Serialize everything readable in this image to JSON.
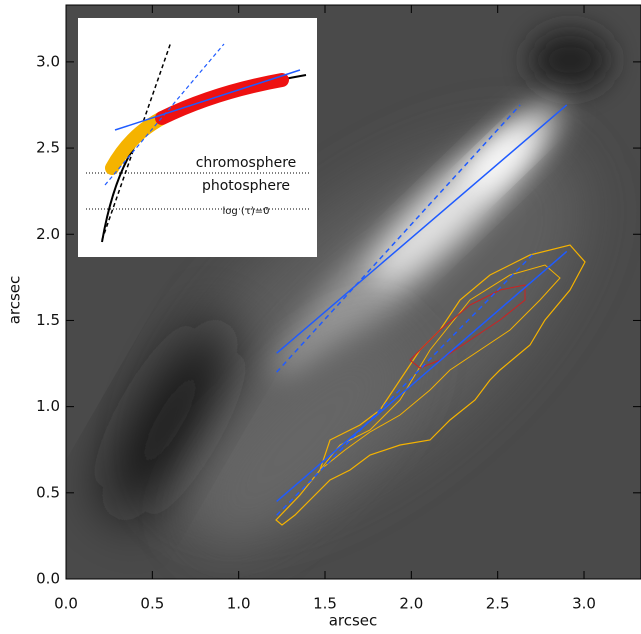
{
  "chart_data": {
    "type": "image",
    "xlabel": "arcsec",
    "ylabel": "arcsec",
    "xlim": [
      0,
      3.33
    ],
    "ylim": [
      0,
      3.33
    ],
    "xticks": [
      {
        "value": 0,
        "label": "0.0"
      },
      {
        "value": 0.5,
        "label": "0.5"
      },
      {
        "value": 1,
        "label": "1.0"
      },
      {
        "value": 1.5,
        "label": "1.5"
      },
      {
        "value": 2,
        "label": "2.0"
      },
      {
        "value": 2.5,
        "label": "2.5"
      },
      {
        "value": 3,
        "label": "3.0"
      }
    ],
    "yticks": [
      {
        "value": 0,
        "label": "0.0"
      },
      {
        "value": 0.5,
        "label": "0.5"
      },
      {
        "value": 1,
        "label": "1.0"
      },
      {
        "value": 1.5,
        "label": "1.5"
      },
      {
        "value": 2,
        "label": "2.0"
      },
      {
        "value": 2.5,
        "label": "2.5"
      },
      {
        "value": 3,
        "label": "3.0"
      }
    ],
    "series": [
      {
        "color": "#1f5bff",
        "dash": false,
        "x": [
          1.22,
          2.9
        ],
        "y": [
          1.31,
          2.75
        ]
      },
      {
        "color": "#1f5bff",
        "dash": true,
        "x": [
          1.22,
          2.63
        ],
        "y": [
          1.2,
          2.75
        ]
      },
      {
        "color": "#1f5bff",
        "dash": false,
        "x": [
          1.22,
          2.9
        ],
        "y": [
          0.45,
          1.9
        ]
      },
      {
        "color": "#1f5bff",
        "dash": true,
        "x": [
          1.22,
          2.72
        ],
        "y": [
          0.37,
          1.9
        ]
      }
    ],
    "inset": {
      "upper_layer": "chromosphere",
      "lower_layer": "photosphere",
      "surface": "log (τ)=0"
    }
  }
}
